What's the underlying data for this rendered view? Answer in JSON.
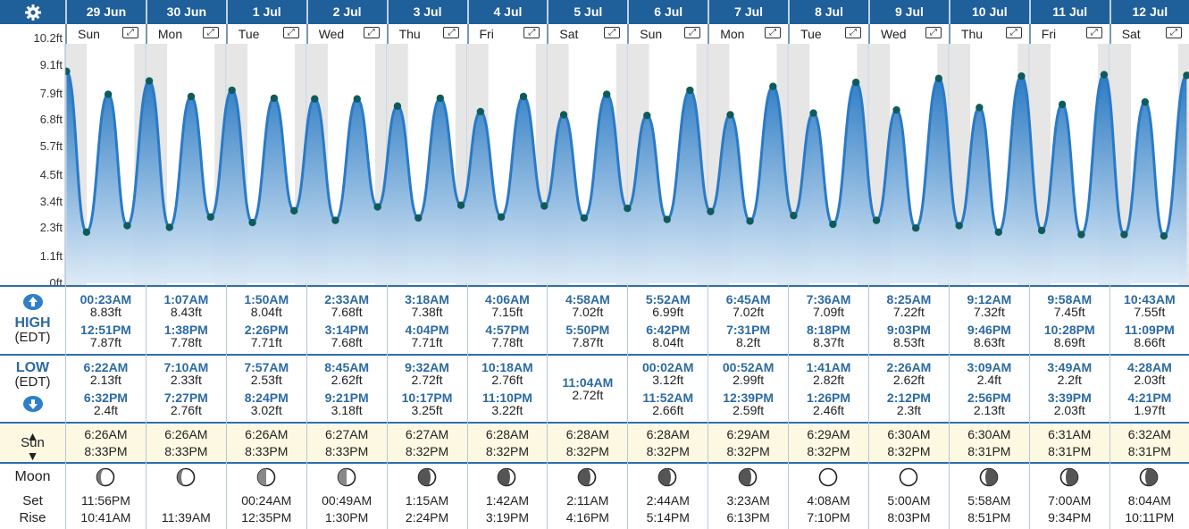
{
  "header": {
    "settings_icon": "gear-icon"
  },
  "labels": {
    "high": "HIGH",
    "edt": "(EDT)",
    "low": "LOW",
    "sun": "Sun",
    "moon": "Moon",
    "set": "Set",
    "rise": "Rise",
    "up_icon": "arrow-up-icon",
    "down_icon": "arrow-down-icon"
  },
  "axis": {
    "ticks": [
      "10.2ft",
      "9.1ft",
      "7.9ft",
      "6.8ft",
      "5.7ft",
      "4.5ft",
      "3.4ft",
      "2.3ft",
      "1.1ft",
      "0ft"
    ]
  },
  "days": [
    {
      "date": "29 Jun",
      "day": "Sun",
      "high": [
        {
          "time": "00:23AM",
          "height": "8.83ft"
        },
        {
          "time": "12:51PM",
          "height": "7.87ft"
        }
      ],
      "low": [
        {
          "time": "6:22AM",
          "height": "2.13ft"
        },
        {
          "time": "6:32PM",
          "height": "2.4ft"
        }
      ],
      "sunrise": "6:26AM",
      "sunset": "8:33PM",
      "moon_phase": "waxing-crescent",
      "moonset": "11:56PM",
      "moonrise": "10:41AM"
    },
    {
      "date": "30 Jun",
      "day": "Mon",
      "high": [
        {
          "time": "1:07AM",
          "height": "8.43ft"
        },
        {
          "time": "1:38PM",
          "height": "7.78ft"
        }
      ],
      "low": [
        {
          "time": "7:10AM",
          "height": "2.33ft"
        },
        {
          "time": "7:27PM",
          "height": "2.76ft"
        }
      ],
      "sunrise": "6:26AM",
      "sunset": "8:33PM",
      "moon_phase": "waxing-crescent",
      "moonset": "",
      "moonrise": "11:39AM"
    },
    {
      "date": "1 Jul",
      "day": "Tue",
      "high": [
        {
          "time": "1:50AM",
          "height": "8.04ft"
        },
        {
          "time": "2:26PM",
          "height": "7.71ft"
        }
      ],
      "low": [
        {
          "time": "7:57AM",
          "height": "2.53ft"
        },
        {
          "time": "8:24PM",
          "height": "3.02ft"
        }
      ],
      "sunrise": "6:26AM",
      "sunset": "8:33PM",
      "moon_phase": "first-quarter",
      "moonset": "00:24AM",
      "moonrise": "12:35PM"
    },
    {
      "date": "2 Jul",
      "day": "Wed",
      "high": [
        {
          "time": "2:33AM",
          "height": "7.68ft"
        },
        {
          "time": "3:14PM",
          "height": "7.68ft"
        }
      ],
      "low": [
        {
          "time": "8:45AM",
          "height": "2.62ft"
        },
        {
          "time": "9:21PM",
          "height": "3.18ft"
        }
      ],
      "sunrise": "6:27AM",
      "sunset": "8:33PM",
      "moon_phase": "first-quarter",
      "moonset": "00:49AM",
      "moonrise": "1:30PM"
    },
    {
      "date": "3 Jul",
      "day": "Thu",
      "high": [
        {
          "time": "3:18AM",
          "height": "7.38ft"
        },
        {
          "time": "4:04PM",
          "height": "7.71ft"
        }
      ],
      "low": [
        {
          "time": "9:32AM",
          "height": "2.72ft"
        },
        {
          "time": "10:17PM",
          "height": "3.25ft"
        }
      ],
      "sunrise": "6:27AM",
      "sunset": "8:32PM",
      "moon_phase": "waxing-gibbous",
      "moonset": "1:15AM",
      "moonrise": "2:24PM"
    },
    {
      "date": "4 Jul",
      "day": "Fri",
      "high": [
        {
          "time": "4:06AM",
          "height": "7.15ft"
        },
        {
          "time": "4:57PM",
          "height": "7.78ft"
        }
      ],
      "low": [
        {
          "time": "10:18AM",
          "height": "2.76ft"
        },
        {
          "time": "11:10PM",
          "height": "3.22ft"
        }
      ],
      "sunrise": "6:28AM",
      "sunset": "8:32PM",
      "moon_phase": "waxing-gibbous",
      "moonset": "1:42AM",
      "moonrise": "3:19PM"
    },
    {
      "date": "5 Jul",
      "day": "Sat",
      "high": [
        {
          "time": "4:58AM",
          "height": "7.02ft"
        },
        {
          "time": "5:50PM",
          "height": "7.87ft"
        }
      ],
      "low": [
        {
          "time": "11:04AM",
          "height": "2.72ft"
        }
      ],
      "sunrise": "6:28AM",
      "sunset": "8:32PM",
      "moon_phase": "waxing-gibbous",
      "moonset": "2:11AM",
      "moonrise": "4:16PM"
    },
    {
      "date": "6 Jul",
      "day": "Sun",
      "high": [
        {
          "time": "5:52AM",
          "height": "6.99ft"
        },
        {
          "time": "6:42PM",
          "height": "8.04ft"
        }
      ],
      "low": [
        {
          "time": "00:02AM",
          "height": "3.12ft"
        },
        {
          "time": "11:52AM",
          "height": "2.66ft"
        }
      ],
      "sunrise": "6:28AM",
      "sunset": "8:32PM",
      "moon_phase": "waxing-gibbous",
      "moonset": "2:44AM",
      "moonrise": "5:14PM"
    },
    {
      "date": "7 Jul",
      "day": "Mon",
      "high": [
        {
          "time": "6:45AM",
          "height": "7.02ft"
        },
        {
          "time": "7:31PM",
          "height": "8.2ft"
        }
      ],
      "low": [
        {
          "time": "00:52AM",
          "height": "2.99ft"
        },
        {
          "time": "12:39PM",
          "height": "2.59ft"
        }
      ],
      "sunrise": "6:29AM",
      "sunset": "8:32PM",
      "moon_phase": "waxing-gibbous",
      "moonset": "3:23AM",
      "moonrise": "6:13PM"
    },
    {
      "date": "8 Jul",
      "day": "Tue",
      "high": [
        {
          "time": "7:36AM",
          "height": "7.09ft"
        },
        {
          "time": "8:18PM",
          "height": "8.37ft"
        }
      ],
      "low": [
        {
          "time": "1:41AM",
          "height": "2.82ft"
        },
        {
          "time": "1:26PM",
          "height": "2.46ft"
        }
      ],
      "sunrise": "6:29AM",
      "sunset": "8:32PM",
      "moon_phase": "full",
      "moonset": "4:08AM",
      "moonrise": "7:10PM"
    },
    {
      "date": "9 Jul",
      "day": "Wed",
      "high": [
        {
          "time": "8:25AM",
          "height": "7.22ft"
        },
        {
          "time": "9:03PM",
          "height": "8.53ft"
        }
      ],
      "low": [
        {
          "time": "2:26AM",
          "height": "2.62ft"
        },
        {
          "time": "2:12PM",
          "height": "2.3ft"
        }
      ],
      "sunrise": "6:30AM",
      "sunset": "8:32PM",
      "moon_phase": "full",
      "moonset": "5:00AM",
      "moonrise": "8:03PM"
    },
    {
      "date": "10 Jul",
      "day": "Thu",
      "high": [
        {
          "time": "9:12AM",
          "height": "7.32ft"
        },
        {
          "time": "9:46PM",
          "height": "8.63ft"
        }
      ],
      "low": [
        {
          "time": "3:09AM",
          "height": "2.4ft"
        },
        {
          "time": "2:56PM",
          "height": "2.13ft"
        }
      ],
      "sunrise": "6:30AM",
      "sunset": "8:31PM",
      "moon_phase": "waning-gibbous",
      "moonset": "5:58AM",
      "moonrise": "8:51PM"
    },
    {
      "date": "11 Jul",
      "day": "Fri",
      "high": [
        {
          "time": "9:58AM",
          "height": "7.45ft"
        },
        {
          "time": "10:28PM",
          "height": "8.69ft"
        }
      ],
      "low": [
        {
          "time": "3:49AM",
          "height": "2.2ft"
        },
        {
          "time": "3:39PM",
          "height": "2.03ft"
        }
      ],
      "sunrise": "6:31AM",
      "sunset": "8:31PM",
      "moon_phase": "waning-gibbous",
      "moonset": "7:00AM",
      "moonrise": "9:34PM"
    },
    {
      "date": "12 Jul",
      "day": "Sat",
      "high": [
        {
          "time": "10:43AM",
          "height": "7.55ft"
        },
        {
          "time": "11:09PM",
          "height": "8.66ft"
        }
      ],
      "low": [
        {
          "time": "4:28AM",
          "height": "2.03ft"
        },
        {
          "time": "4:21PM",
          "height": "1.97ft"
        }
      ],
      "sunrise": "6:32AM",
      "sunset": "8:31PM",
      "moon_phase": "waning-gibbous",
      "moonset": "8:04AM",
      "moonrise": "10:11PM"
    }
  ],
  "chart_data": {
    "type": "area",
    "x_unit": "hours since 29 Jun 00:00 (EDT)",
    "ylim": [
      0,
      10.2
    ],
    "y_ticks": [
      0,
      1.1,
      2.3,
      3.4,
      4.5,
      5.7,
      6.8,
      7.9,
      9.1,
      10.2
    ],
    "points": [
      [
        0.38,
        8.83
      ],
      [
        6.37,
        2.13
      ],
      [
        12.85,
        7.87
      ],
      [
        18.53,
        2.4
      ],
      [
        25.12,
        8.43
      ],
      [
        31.17,
        2.33
      ],
      [
        37.63,
        7.78
      ],
      [
        43.45,
        2.76
      ],
      [
        49.83,
        8.04
      ],
      [
        55.95,
        2.53
      ],
      [
        62.43,
        7.71
      ],
      [
        68.4,
        3.02
      ],
      [
        74.55,
        7.68
      ],
      [
        80.75,
        2.62
      ],
      [
        87.23,
        7.68
      ],
      [
        93.35,
        3.18
      ],
      [
        99.3,
        7.38
      ],
      [
        105.53,
        2.72
      ],
      [
        112.07,
        7.71
      ],
      [
        118.28,
        3.25
      ],
      [
        124.1,
        7.15
      ],
      [
        130.3,
        2.76
      ],
      [
        136.95,
        7.78
      ],
      [
        143.17,
        3.22
      ],
      [
        148.97,
        7.02
      ],
      [
        155.07,
        2.72
      ],
      [
        161.83,
        7.87
      ],
      [
        168.03,
        3.12
      ],
      [
        173.87,
        6.99
      ],
      [
        179.87,
        2.66
      ],
      [
        186.7,
        8.04
      ],
      [
        192.87,
        2.99
      ],
      [
        198.75,
        7.02
      ],
      [
        204.65,
        2.59
      ],
      [
        211.52,
        8.2
      ],
      [
        217.68,
        2.82
      ],
      [
        223.6,
        7.09
      ],
      [
        229.43,
        2.46
      ],
      [
        236.3,
        8.37
      ],
      [
        242.43,
        2.62
      ],
      [
        248.42,
        7.22
      ],
      [
        254.2,
        2.3
      ],
      [
        261.05,
        8.53
      ],
      [
        267.15,
        2.4
      ],
      [
        273.2,
        7.32
      ],
      [
        278.93,
        2.13
      ],
      [
        285.77,
        8.63
      ],
      [
        291.82,
        2.2
      ],
      [
        297.97,
        7.45
      ],
      [
        303.65,
        2.03
      ],
      [
        310.47,
        8.69
      ],
      [
        316.47,
        2.03
      ],
      [
        322.72,
        7.55
      ],
      [
        328.35,
        1.97
      ],
      [
        335.15,
        8.66
      ]
    ],
    "colors": {
      "fill_top": "#1f73c0",
      "fill_bottom": "#dbeaf7",
      "line": "#2a7ac6",
      "point": "#0f5b5b",
      "night": "#e6e6e6"
    }
  }
}
